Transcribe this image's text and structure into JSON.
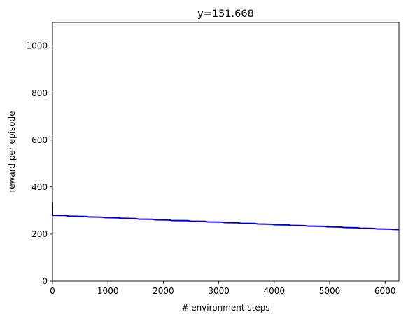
{
  "chart_data": {
    "type": "line",
    "title": "y=151.668",
    "xlabel": "# environment steps",
    "ylabel": "reward per episode",
    "xlim": [
      0,
      6250
    ],
    "ylim": [
      0,
      1100
    ],
    "xticks": [
      0,
      1000,
      2000,
      3000,
      4000,
      5000,
      6000
    ],
    "yticks": [
      0,
      200,
      400,
      600,
      800,
      1000
    ],
    "grid": false,
    "legend": "none",
    "colors": {
      "line": "#0000cc",
      "axes": "#000000",
      "background": "#ffffff"
    },
    "series": [
      {
        "x": [
          0,
          0,
          10,
          250,
          300,
          600,
          650,
          900,
          950,
          1200,
          1250,
          1500,
          1550,
          1800,
          1850,
          2100,
          2150,
          2450,
          2500,
          2750,
          2800,
          3050,
          3100,
          3350,
          3400,
          3650,
          3700,
          3950,
          4000,
          4250,
          4300,
          4550,
          4600,
          4900,
          4950,
          5200,
          5250,
          5500,
          5550,
          5800,
          5850,
          6100,
          6150,
          6250
        ],
        "y": [
          335,
          280,
          280,
          279,
          276,
          275,
          273,
          272,
          270,
          269,
          267,
          266,
          264,
          263,
          261,
          260,
          258,
          257,
          255,
          254,
          252,
          251,
          249,
          248,
          246,
          245,
          243,
          242,
          240,
          239,
          237,
          236,
          234,
          233,
          231,
          230,
          228,
          227,
          225,
          224,
          222,
          221,
          220,
          219
        ]
      }
    ]
  }
}
